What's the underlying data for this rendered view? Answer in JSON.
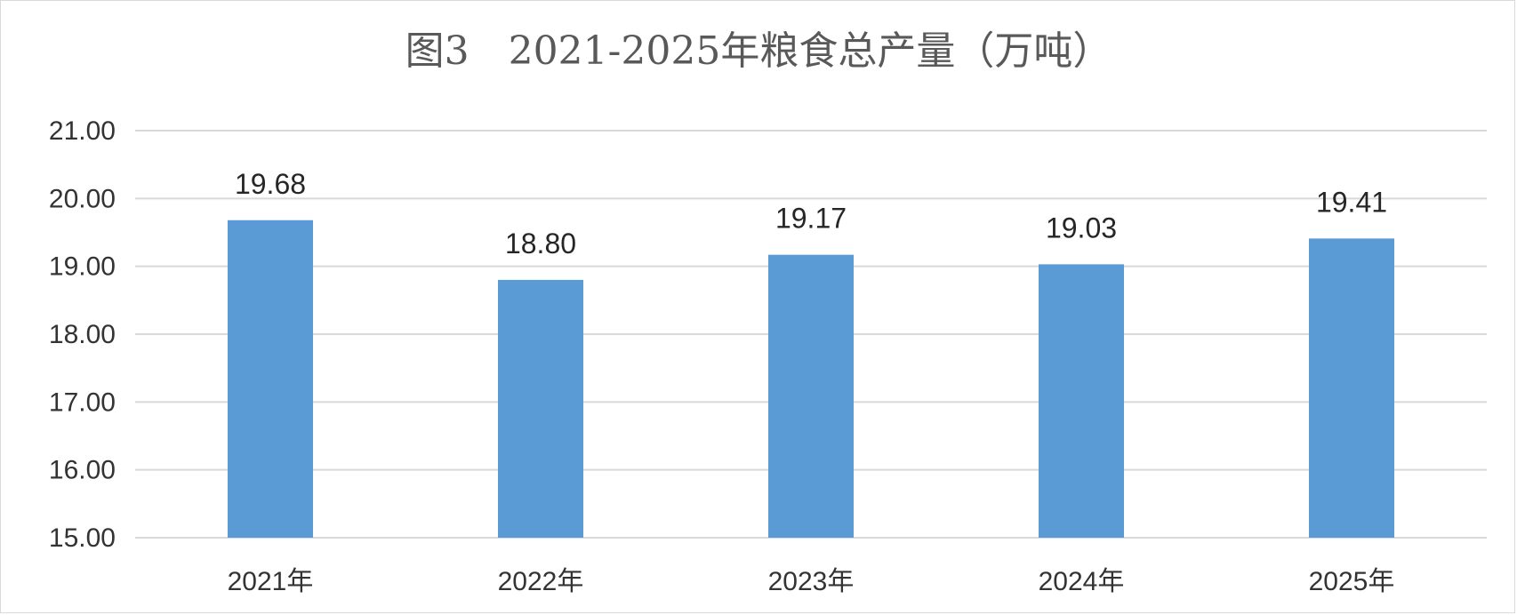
{
  "chart_data": {
    "type": "bar",
    "title": "图3　2021-2025年粮食总产量（万吨）",
    "categories": [
      "2021年",
      "2022年",
      "2023年",
      "2024年",
      "2025年"
    ],
    "series": [
      {
        "values": [
          19.68,
          18.8,
          19.17,
          19.03,
          19.41
        ],
        "color": "#5b9bd5"
      }
    ],
    "data_labels": [
      "19.68",
      "18.80",
      "19.17",
      "19.03",
      "19.41"
    ],
    "y_ticks": [
      "15.00",
      "16.00",
      "17.00",
      "18.00",
      "19.00",
      "20.00",
      "21.00"
    ],
    "ylim": [
      15,
      21
    ],
    "grid": true,
    "legend": "none"
  }
}
